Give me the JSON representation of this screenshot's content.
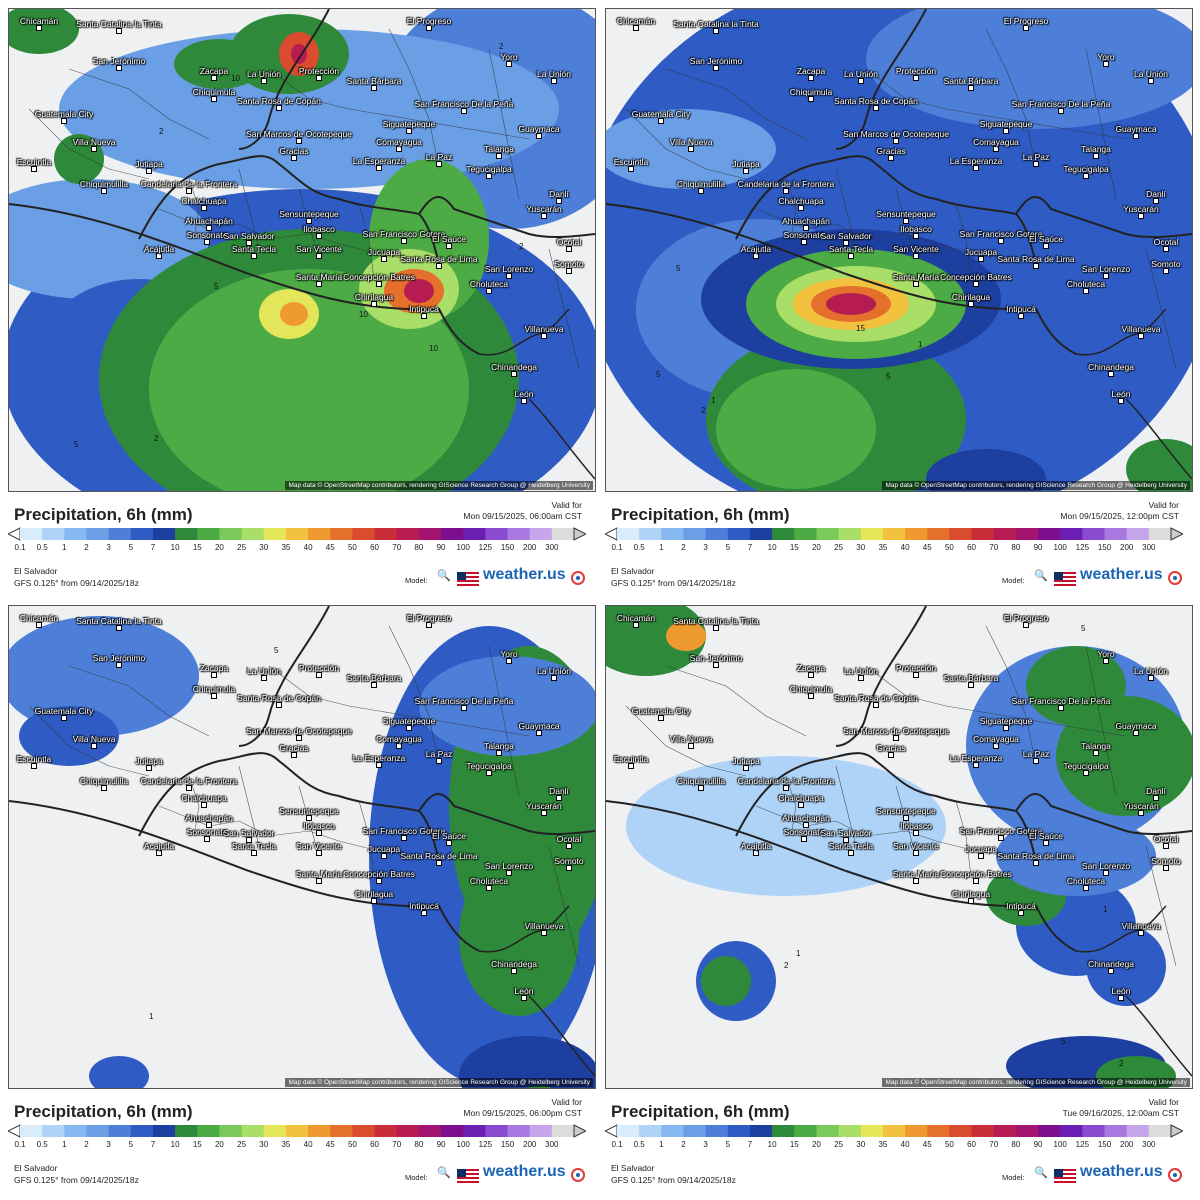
{
  "panels": [
    {
      "title": "Precipitation, 6h (mm)",
      "valid_label": "Valid for",
      "valid_time": "Mon 09/15/2025, 06:00am CST"
    },
    {
      "title": "Precipitation, 6h (mm)",
      "valid_label": "Valid for",
      "valid_time": "Mon 09/15/2025, 12:00pm CST"
    },
    {
      "title": "Precipitation, 6h (mm)",
      "valid_label": "Valid for",
      "valid_time": "Mon 09/15/2025, 06:00pm CST"
    },
    {
      "title": "Precipitation, 6h (mm)",
      "valid_label": "Valid for",
      "valid_time": "Tue 09/16/2025, 12:00am CST"
    }
  ],
  "region": "El Salvador",
  "model_run": "GFS 0.125° from  09/14/2025/18z",
  "model_label": "Model:",
  "brand": "weather.us",
  "attribution": "Map data © OpenStreetMap contributors, rendering GIScience Research Group @ Heidelberg University",
  "scale": {
    "ticks": [
      "0.1",
      "0.5",
      "1",
      "2",
      "3",
      "5",
      "7",
      "10",
      "15",
      "20",
      "25",
      "30",
      "35",
      "40",
      "45",
      "50",
      "60",
      "70",
      "80",
      "90",
      "100",
      "125",
      "150",
      "200",
      "300"
    ],
    "colors": [
      "#d9ecfb",
      "#aed3f7",
      "#85b9f0",
      "#6a9fe6",
      "#4d7fd9",
      "#2f5cc4",
      "#1d3f9f",
      "#2e8a3a",
      "#4cab45",
      "#7bc95a",
      "#a9de68",
      "#e4e65a",
      "#f2c23e",
      "#ef9a31",
      "#e5702c",
      "#d94c2e",
      "#c92d3a",
      "#b61c52",
      "#a31470",
      "#7d0f8f",
      "#6a1fb2",
      "#8a4bd1",
      "#a877e0",
      "#c6a6ea",
      "#dcdcdc"
    ]
  },
  "cities": [
    "Chicamán",
    "Santa Catalina la Tinta",
    "El Progreso",
    "Yoro",
    "San Jerónimo",
    "Zacapa",
    "La Unión",
    "Protección",
    "Santa Bárbara",
    "Chiquimula",
    "Santa Rosa de Copán",
    "San Francisco De la Peña",
    "Guatemala City",
    "Villa Nueva",
    "Gracias",
    "Siguatepeque",
    "La Unión",
    "Guaymaca",
    "San Marcos de Ocotepeque",
    "Comayagua",
    "Talanga",
    "Escuintla",
    "Jutiapa",
    "La Esperanza",
    "La Paz",
    "Candelaria de la Frontera",
    "Tegucigalpa",
    "Danlí",
    "Chiquimulilla",
    "Chalchuapa",
    "Sensuntepeque",
    "Yuscarán",
    "Ahuachapán",
    "Ilobasco",
    "San Francisco Gotera",
    "Sonsonate",
    "San Salvador",
    "El Saúce",
    "Ocotal",
    "Acajutla",
    "Santa Tecla",
    "San Vicente",
    "Jucuapa",
    "Santa Rosa de Lima",
    "Somoto",
    "Santa María",
    "Concepción Batres",
    "San Lorenzo",
    "Chirilagua",
    "Choluteca",
    "Intipucá",
    "Villanueva",
    "Chinandega",
    "León"
  ]
}
